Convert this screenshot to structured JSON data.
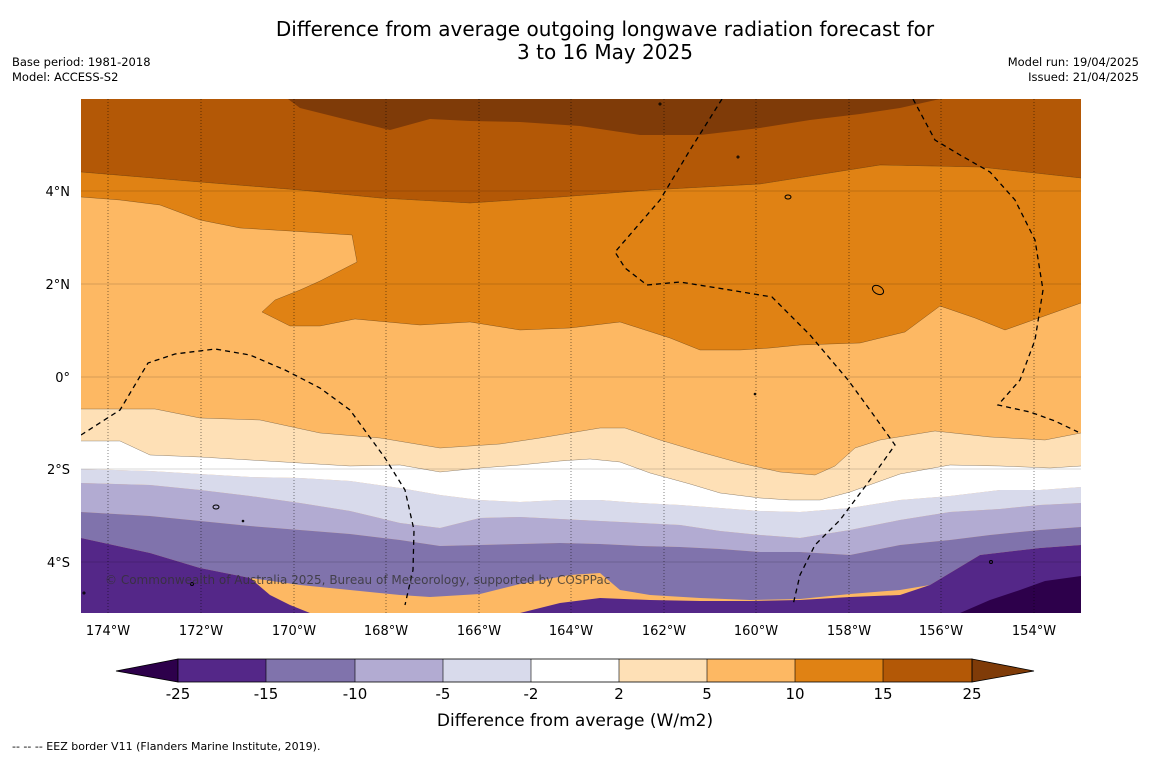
{
  "title": {
    "line1": "Difference from average outgoing longwave radiation forecast for",
    "line2": "3 to 16 May 2025"
  },
  "info_left": {
    "base_period": "Base period: 1981-2018",
    "model": "Model: ACCESS-S2"
  },
  "info_right": {
    "model_run": "Model run: 19/04/2025",
    "issued": "Issued: 21/04/2025"
  },
  "map": {
    "lat_labels": [
      "4°N",
      "2°N",
      "0°",
      "2°S",
      "4°S"
    ],
    "lon_labels": [
      "174°W",
      "172°W",
      "170°W",
      "168°W",
      "166°W",
      "164°W",
      "162°W",
      "160°W",
      "158°W",
      "156°W",
      "154°W"
    ],
    "copyright": "© Commonwealth of Australia 2025, Bureau of Meteorology, supported by COSPPac"
  },
  "colorbar": {
    "label": "Difference from average (W/m2)",
    "ticks": [
      "-25",
      "-15",
      "-10",
      "-5",
      "-2",
      "2",
      "5",
      "10",
      "15",
      "25"
    ],
    "colors": {
      "below_-25": "#2d004b",
      "-25_-15": "#542788",
      "-15_-10": "#8073ac",
      "-10_-5": "#b2abd2",
      "-5_-2": "#d8daeb",
      "-2_2": "#ffffff",
      "2_5": "#fee0b6",
      "5_10": "#fdb863",
      "10_15": "#e08214",
      "15_25": "#b35806",
      "above_25": "#7f3b08"
    }
  },
  "footnote": "--  --  -- EEZ border V11 (Flanders Marine Institute, 2019)."
}
